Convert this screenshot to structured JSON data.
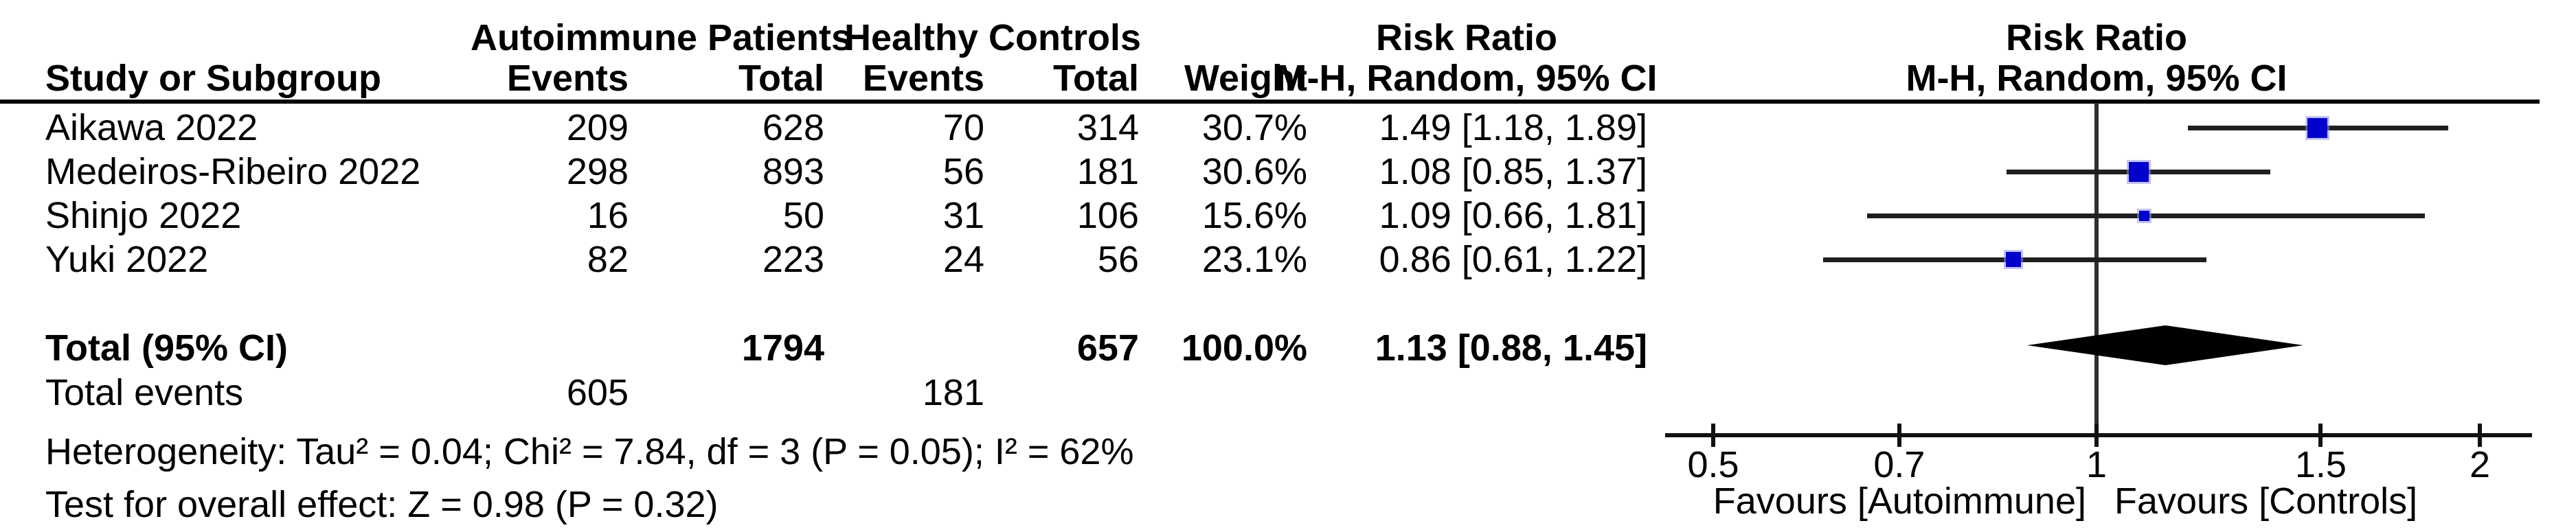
{
  "table": {
    "group_headers": {
      "autoimmune": "Autoimmune Patients",
      "controls": "Healthy Controls",
      "risk_ratio_col": "Risk Ratio",
      "risk_ratio_plot": "Risk Ratio"
    },
    "column_headers": {
      "study": "Study or Subgroup",
      "events1": "Events",
      "total1": "Total",
      "events2": "Events",
      "total2": "Total",
      "weight": "Weight",
      "mh_ci": "M-H, Random, 95% CI",
      "mh_ci_plot": "M-H, Random, 95% CI"
    },
    "studies": [
      {
        "name": "Aikawa 2022",
        "events1": "209",
        "total1": "628",
        "events2": "70",
        "total2": "314",
        "weight": "30.7%",
        "rr_text": "1.49 [1.18, 1.89]"
      },
      {
        "name": "Medeiros-Ribeiro 2022",
        "events1": "298",
        "total1": "893",
        "events2": "56",
        "total2": "181",
        "weight": "30.6%",
        "rr_text": "1.08 [0.85, 1.37]"
      },
      {
        "name": "Shinjo 2022",
        "events1": "16",
        "total1": "50",
        "events2": "31",
        "total2": "106",
        "weight": "15.6%",
        "rr_text": "1.09 [0.66, 1.81]"
      },
      {
        "name": "Yuki 2022",
        "events1": "82",
        "total1": "223",
        "events2": "24",
        "total2": "56",
        "weight": "23.1%",
        "rr_text": "0.86 [0.61, 1.22]"
      }
    ],
    "total_row": {
      "label": "Total (95% CI)",
      "total1": "1794",
      "total2": "657",
      "weight": "100.0%",
      "rr_text": "1.13 [0.88, 1.45]"
    },
    "total_events": {
      "label": "Total events",
      "events1": "605",
      "events2": "181"
    },
    "heterogeneity": "Heterogeneity: Tau² = 0.04; Chi² = 7.84, df = 3 (P = 0.05); I² = 62%",
    "overall_effect": "Test for overall effect: Z = 0.98 (P = 0.32)"
  },
  "chart_data": {
    "type": "forest",
    "effect_measure": "Risk Ratio",
    "method": "M-H, Random, 95% CI",
    "x_scale": "log",
    "xlim": [
      0.45,
      2.2
    ],
    "ticks": [
      0.5,
      0.7,
      1,
      1.5,
      2
    ],
    "tick_labels": [
      "0.5",
      "0.7",
      "1",
      "1.5",
      "2"
    ],
    "null_line": 1,
    "studies": [
      {
        "name": "Aikawa 2022",
        "rr": 1.49,
        "ci_low": 1.18,
        "ci_high": 1.89,
        "weight_pct": 30.7
      },
      {
        "name": "Medeiros-Ribeiro 2022",
        "rr": 1.08,
        "ci_low": 0.85,
        "ci_high": 1.37,
        "weight_pct": 30.6
      },
      {
        "name": "Shinjo 2022",
        "rr": 1.09,
        "ci_low": 0.66,
        "ci_high": 1.81,
        "weight_pct": 15.6
      },
      {
        "name": "Yuki 2022",
        "rr": 0.86,
        "ci_low": 0.61,
        "ci_high": 1.22,
        "weight_pct": 23.1
      }
    ],
    "total": {
      "rr": 1.13,
      "ci_low": 0.88,
      "ci_high": 1.45
    },
    "favours_left": "Favours [Autoimmune]",
    "favours_right": "Favours [Controls]",
    "marker_color": "#0202CC",
    "ci_color": "#1f1f1f",
    "diamond_color": "#000000"
  }
}
